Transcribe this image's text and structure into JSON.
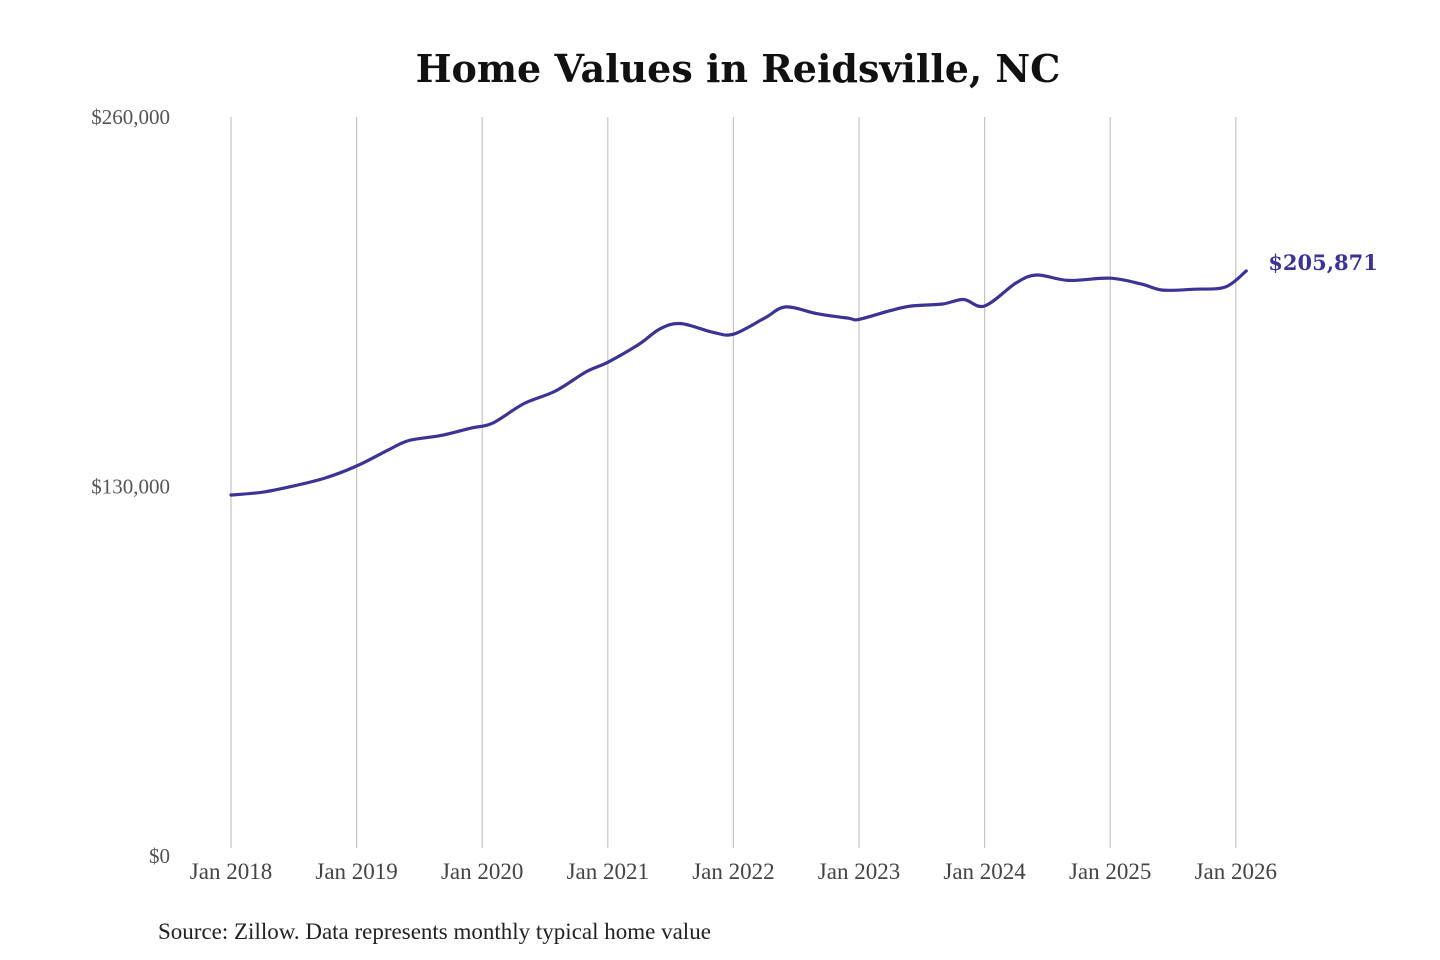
{
  "chart_data": {
    "type": "line",
    "title": "Home Values in Reidsville, NC",
    "xlabel": "",
    "ylabel": "",
    "source": "Source: Zillow. Data represents monthly typical home value",
    "ylim": [
      0,
      260000
    ],
    "yticks": [
      {
        "value": 0,
        "label": "$0"
      },
      {
        "value": 130000,
        "label": "$130,000"
      },
      {
        "value": 260000,
        "label": "$260,000"
      }
    ],
    "xticks": [
      {
        "value": "2018-01",
        "label": "Jan 2018"
      },
      {
        "value": "2019-01",
        "label": "Jan 2019"
      },
      {
        "value": "2020-01",
        "label": "Jan 2020"
      },
      {
        "value": "2021-01",
        "label": "Jan 2021"
      },
      {
        "value": "2022-01",
        "label": "Jan 2022"
      },
      {
        "value": "2023-01",
        "label": "Jan 2023"
      },
      {
        "value": "2024-01",
        "label": "Jan 2024"
      },
      {
        "value": "2025-01",
        "label": "Jan 2025"
      },
      {
        "value": "2026-01",
        "label": "Jan 2026"
      }
    ],
    "grid": {
      "vertical": true,
      "horizontal": false
    },
    "line_color": "#3b3495",
    "end_label": "$205,871",
    "series": [
      {
        "name": "",
        "points": [
          {
            "x": "2018-01",
            "y": 127000
          },
          {
            "x": "2018-04",
            "y": 128000
          },
          {
            "x": "2018-07",
            "y": 130200
          },
          {
            "x": "2018-10",
            "y": 133000
          },
          {
            "x": "2019-01",
            "y": 137200
          },
          {
            "x": "2019-04",
            "y": 142800
          },
          {
            "x": "2019-06",
            "y": 146200
          },
          {
            "x": "2019-09",
            "y": 147900
          },
          {
            "x": "2019-12",
            "y": 150600
          },
          {
            "x": "2020-02",
            "y": 152300
          },
          {
            "x": "2020-05",
            "y": 159200
          },
          {
            "x": "2020-08",
            "y": 163600
          },
          {
            "x": "2020-11",
            "y": 170500
          },
          {
            "x": "2021-01",
            "y": 173700
          },
          {
            "x": "2021-04",
            "y": 180100
          },
          {
            "x": "2021-06",
            "y": 185500
          },
          {
            "x": "2021-08",
            "y": 187300
          },
          {
            "x": "2021-11",
            "y": 184300
          },
          {
            "x": "2022-01",
            "y": 183600
          },
          {
            "x": "2022-04",
            "y": 189300
          },
          {
            "x": "2022-06",
            "y": 193200
          },
          {
            "x": "2022-09",
            "y": 190800
          },
          {
            "x": "2022-12",
            "y": 189200
          },
          {
            "x": "2023-01",
            "y": 188800
          },
          {
            "x": "2023-04",
            "y": 191900
          },
          {
            "x": "2023-06",
            "y": 193500
          },
          {
            "x": "2023-09",
            "y": 194200
          },
          {
            "x": "2023-11",
            "y": 195800
          },
          {
            "x": "2024-01",
            "y": 193500
          },
          {
            "x": "2024-04",
            "y": 201600
          },
          {
            "x": "2024-06",
            "y": 204400
          },
          {
            "x": "2024-09",
            "y": 202500
          },
          {
            "x": "2025-01",
            "y": 203300
          },
          {
            "x": "2025-04",
            "y": 201200
          },
          {
            "x": "2025-06",
            "y": 199100
          },
          {
            "x": "2025-09",
            "y": 199400
          },
          {
            "x": "2025-12",
            "y": 200200
          },
          {
            "x": "2026-02",
            "y": 205871
          }
        ]
      }
    ]
  }
}
